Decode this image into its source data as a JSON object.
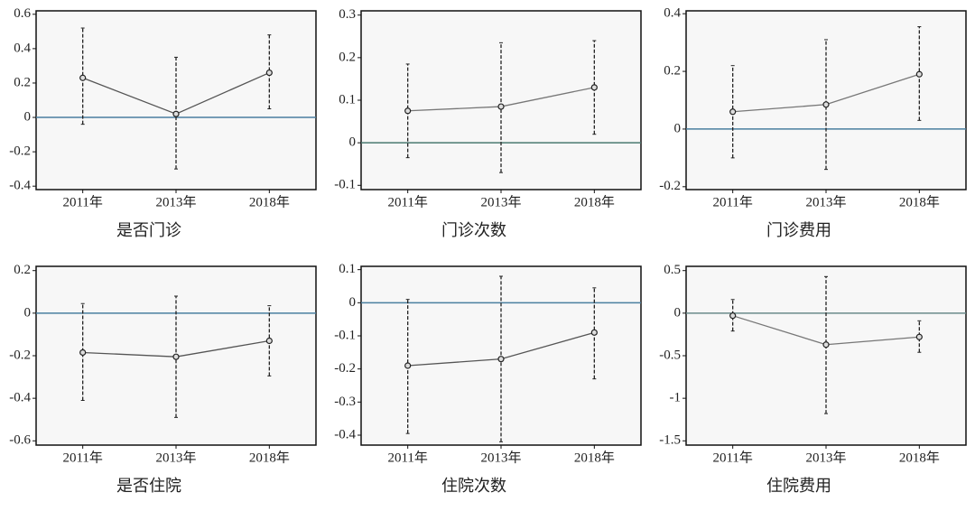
{
  "chart_data": [
    {
      "type": "errorbar",
      "xlabel": "是否门诊",
      "categories": [
        "2011年",
        "2013年",
        "2018年"
      ],
      "values": [
        0.23,
        0.02,
        0.26
      ],
      "lower": [
        -0.04,
        -0.3,
        0.05
      ],
      "upper": [
        0.52,
        0.35,
        0.48
      ],
      "color": "#555555",
      "ylim": [
        -0.42,
        0.62
      ],
      "yticks": [
        -0.4,
        -0.2,
        0,
        0.2,
        0.4,
        0.6
      ],
      "hline": 0,
      "hline_color": "#4a7fa0"
    },
    {
      "type": "errorbar",
      "xlabel": "门诊次数",
      "categories": [
        "2011年",
        "2013年",
        "2018年"
      ],
      "values": [
        0.075,
        0.085,
        0.13
      ],
      "lower": [
        -0.035,
        -0.07,
        0.02
      ],
      "upper": [
        0.185,
        0.235,
        0.24
      ],
      "color": "#777777",
      "ylim": [
        -0.11,
        0.31
      ],
      "yticks": [
        -0.1,
        0,
        0.1,
        0.2,
        0.3
      ],
      "hline": 0,
      "hline_color": "#4a7a70"
    },
    {
      "type": "errorbar",
      "xlabel": "门诊费用",
      "categories": [
        "2011年",
        "2013年",
        "2018年"
      ],
      "values": [
        0.06,
        0.085,
        0.19
      ],
      "lower": [
        -0.1,
        -0.14,
        0.03
      ],
      "upper": [
        0.22,
        0.31,
        0.355
      ],
      "color": "#777777",
      "ylim": [
        -0.21,
        0.41
      ],
      "yticks": [
        -0.2,
        0,
        0.2,
        0.4
      ],
      "hline": 0,
      "hline_color": "#4a7fa0"
    },
    {
      "type": "errorbar",
      "xlabel": "是否住院",
      "categories": [
        "2011年",
        "2013年",
        "2018年"
      ],
      "values": [
        -0.185,
        -0.205,
        -0.13
      ],
      "lower": [
        -0.41,
        -0.49,
        -0.295
      ],
      "upper": [
        0.045,
        0.08,
        0.035
      ],
      "color": "#555555",
      "ylim": [
        -0.62,
        0.22
      ],
      "yticks": [
        -0.6,
        -0.4,
        -0.2,
        0,
        0.2
      ],
      "hline": 0,
      "hline_color": "#4a7fa0"
    },
    {
      "type": "errorbar",
      "xlabel": "住院次数",
      "categories": [
        "2011年",
        "2013年",
        "2018年"
      ],
      "values": [
        -0.19,
        -0.17,
        -0.09
      ],
      "lower": [
        -0.395,
        -0.42,
        -0.23
      ],
      "upper": [
        0.01,
        0.08,
        0.045
      ],
      "color": "#555555",
      "ylim": [
        -0.43,
        0.11
      ],
      "yticks": [
        -0.4,
        -0.3,
        -0.2,
        -0.1,
        0,
        0.1
      ],
      "hline": 0,
      "hline_color": "#4a7fa0"
    },
    {
      "type": "errorbar",
      "xlabel": "住院费用",
      "categories": [
        "2011年",
        "2013年",
        "2018年"
      ],
      "values": [
        -0.03,
        -0.37,
        -0.28
      ],
      "lower": [
        -0.21,
        -1.18,
        -0.46
      ],
      "upper": [
        0.16,
        0.43,
        -0.09
      ],
      "color": "#777777",
      "ylim": [
        -1.55,
        0.55
      ],
      "yticks": [
        -1.5,
        -1,
        -0.5,
        0,
        0.5
      ],
      "hline": 0,
      "hline_color": "#6a8a8a"
    }
  ]
}
